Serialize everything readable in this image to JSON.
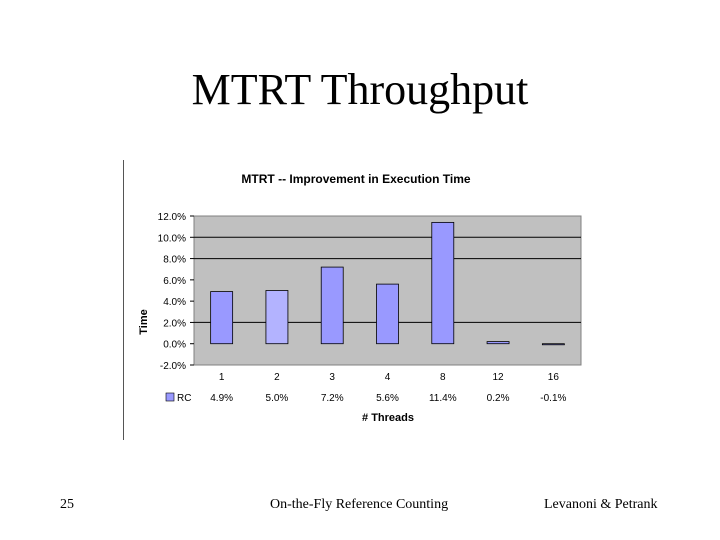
{
  "slide": {
    "title": "MTRT Throughput",
    "footer_left": "25",
    "footer_center": "On-the-Fly Reference Counting",
    "footer_right": "Levanoni & Petrank"
  },
  "chart_data": {
    "type": "bar",
    "title": "MTRT -- Improvement in Execution Time",
    "xlabel": "# Threads",
    "ylabel": "Time",
    "categories": [
      "1",
      "2",
      "3",
      "4",
      "8",
      "12",
      "16"
    ],
    "series": [
      {
        "name": "RC",
        "values": [
          4.9,
          5.0,
          7.2,
          5.6,
          11.4,
          0.2,
          -0.1
        ],
        "labels": [
          "4.9%",
          "5.0%",
          "7.2%",
          "5.6%",
          "11.4%",
          "0.2%",
          "-0.1%"
        ]
      }
    ],
    "yticks": [
      12,
      10,
      8,
      6,
      4,
      2,
      0,
      -2
    ],
    "ytick_labels": [
      "12.0%",
      "10.0%",
      "8.0%",
      "6.0%",
      "4.0%",
      "2.0%",
      "0.0%",
      "-2.0%"
    ],
    "ylim": [
      -2,
      12
    ],
    "legend": "bottom-left data table",
    "colors": {
      "plot_background": "#c0c0c0",
      "bar": "#9999ff",
      "bar_highlight": "#b3b3ff",
      "gridline": "#000000"
    }
  }
}
